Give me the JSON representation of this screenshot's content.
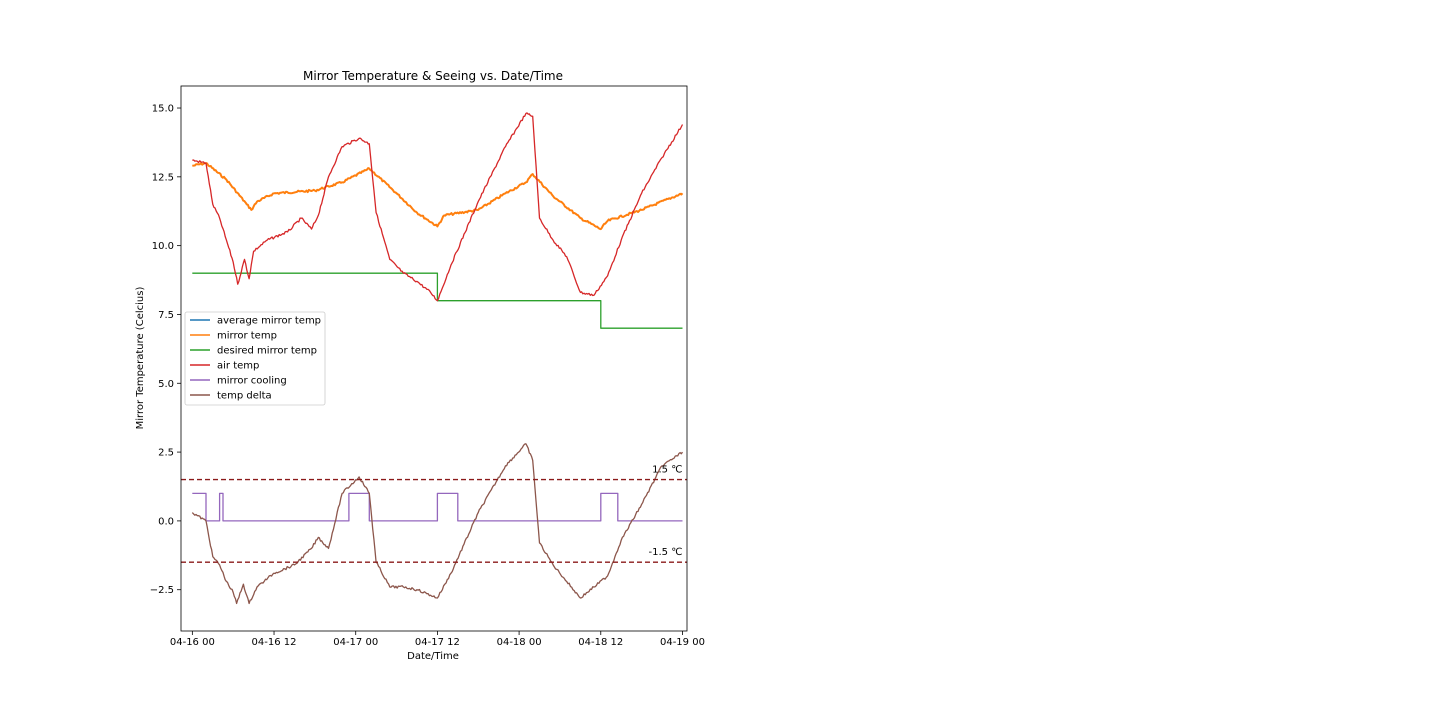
{
  "chart_data": {
    "type": "line",
    "title": "Mirror Temperature & Seeing vs. Date/Time",
    "xlabel": "Date/Time",
    "ylabel": "Mirror Temperature (Celcius)",
    "xlim": [
      "2024-04-15T22:20",
      "2024-04-19T00:40"
    ],
    "ylim": [
      -4.0,
      15.8
    ],
    "x_ticks": [
      {
        "t": "2024-04-16T00:00",
        "label": "04-16 00"
      },
      {
        "t": "2024-04-16T12:00",
        "label": "04-16 12"
      },
      {
        "t": "2024-04-17T00:00",
        "label": "04-17 00"
      },
      {
        "t": "2024-04-17T12:00",
        "label": "04-17 12"
      },
      {
        "t": "2024-04-18T00:00",
        "label": "04-18 00"
      },
      {
        "t": "2024-04-18T12:00",
        "label": "04-18 12"
      },
      {
        "t": "2024-04-19T00:00",
        "label": "04-19 00"
      }
    ],
    "y_ticks": [
      {
        "v": -2.5,
        "label": "−2.5"
      },
      {
        "v": 0.0,
        "label": "0.0"
      },
      {
        "v": 2.5,
        "label": "2.5"
      },
      {
        "v": 5.0,
        "label": "5.0"
      },
      {
        "v": 7.5,
        "label": "7.5"
      },
      {
        "v": 10.0,
        "label": "10.0"
      },
      {
        "v": 12.5,
        "label": "12.5"
      },
      {
        "v": 15.0,
        "label": "15.0"
      }
    ],
    "legend_position": "center-left",
    "grid": false,
    "series": [
      {
        "name": "average mirror temp",
        "color": "#1f77b4",
        "points": []
      },
      {
        "name": "mirror temp",
        "color": "#ff7f0e",
        "points": [
          [
            "2024-04-16T00:00",
            12.9
          ],
          [
            "2024-04-16T02:00",
            13.0
          ],
          [
            "2024-04-16T05:00",
            12.4
          ],
          [
            "2024-04-16T08:00",
            11.5
          ],
          [
            "2024-04-16T08:40",
            11.3
          ],
          [
            "2024-04-16T09:30",
            11.6
          ],
          [
            "2024-04-16T12:00",
            11.9
          ],
          [
            "2024-04-16T18:00",
            12.0
          ],
          [
            "2024-04-16T22:00",
            12.3
          ],
          [
            "2024-04-17T02:00",
            12.8
          ],
          [
            "2024-04-17T06:00",
            11.9
          ],
          [
            "2024-04-17T09:00",
            11.2
          ],
          [
            "2024-04-17T12:00",
            10.7
          ],
          [
            "2024-04-17T13:00",
            11.1
          ],
          [
            "2024-04-17T18:00",
            11.3
          ],
          [
            "2024-04-17T22:00",
            11.9
          ],
          [
            "2024-04-18T01:00",
            12.3
          ],
          [
            "2024-04-18T02:00",
            12.6
          ],
          [
            "2024-04-18T05:00",
            11.8
          ],
          [
            "2024-04-18T09:00",
            11.0
          ],
          [
            "2024-04-18T12:00",
            10.6
          ],
          [
            "2024-04-18T13:00",
            10.9
          ],
          [
            "2024-04-18T18:00",
            11.3
          ],
          [
            "2024-04-19T00:00",
            11.9
          ]
        ]
      },
      {
        "name": "desired mirror temp",
        "color": "#2ca02c",
        "points": [
          [
            "2024-04-16T00:00",
            9.0
          ],
          [
            "2024-04-17T12:00",
            9.0
          ],
          [
            "2024-04-17T12:00",
            8.0
          ],
          [
            "2024-04-18T12:00",
            8.0
          ],
          [
            "2024-04-18T12:00",
            7.0
          ],
          [
            "2024-04-19T00:00",
            7.0
          ]
        ]
      },
      {
        "name": "air temp",
        "color": "#d62728",
        "points": [
          [
            "2024-04-16T00:00",
            13.1
          ],
          [
            "2024-04-16T02:00",
            13.0
          ],
          [
            "2024-04-16T03:00",
            11.5
          ],
          [
            "2024-04-16T04:00",
            11.0
          ],
          [
            "2024-04-16T05:00",
            10.2
          ],
          [
            "2024-04-16T06:00",
            9.4
          ],
          [
            "2024-04-16T06:40",
            8.6
          ],
          [
            "2024-04-16T07:40",
            9.5
          ],
          [
            "2024-04-16T08:20",
            8.8
          ],
          [
            "2024-04-16T09:00",
            9.8
          ],
          [
            "2024-04-16T11:00",
            10.2
          ],
          [
            "2024-04-16T14:00",
            10.5
          ],
          [
            "2024-04-16T16:00",
            11.0
          ],
          [
            "2024-04-16T17:30",
            10.6
          ],
          [
            "2024-04-16T18:30",
            11.1
          ],
          [
            "2024-04-16T20:00",
            12.5
          ],
          [
            "2024-04-16T22:00",
            13.6
          ],
          [
            "2024-04-17T00:30",
            13.9
          ],
          [
            "2024-04-17T02:00",
            13.7
          ],
          [
            "2024-04-17T03:00",
            11.2
          ],
          [
            "2024-04-17T05:00",
            9.5
          ],
          [
            "2024-04-17T07:00",
            9.0
          ],
          [
            "2024-04-17T09:00",
            8.7
          ],
          [
            "2024-04-17T11:00",
            8.3
          ],
          [
            "2024-04-17T12:00",
            8.0
          ],
          [
            "2024-04-17T14:00",
            9.3
          ],
          [
            "2024-04-17T18:00",
            11.6
          ],
          [
            "2024-04-17T22:00",
            13.6
          ],
          [
            "2024-04-18T01:00",
            14.8
          ],
          [
            "2024-04-18T02:00",
            14.7
          ],
          [
            "2024-04-18T03:00",
            11.0
          ],
          [
            "2024-04-18T05:00",
            10.2
          ],
          [
            "2024-04-18T07:00",
            9.6
          ],
          [
            "2024-04-18T09:00",
            8.3
          ],
          [
            "2024-04-18T11:00",
            8.2
          ],
          [
            "2024-04-18T13:00",
            8.9
          ],
          [
            "2024-04-18T15:00",
            10.2
          ],
          [
            "2024-04-18T18:00",
            11.9
          ],
          [
            "2024-04-18T21:00",
            13.2
          ],
          [
            "2024-04-19T00:00",
            14.4
          ]
        ]
      },
      {
        "name": "mirror cooling",
        "color": "#9467bd",
        "points": [
          [
            "2024-04-16T00:00",
            1.0
          ],
          [
            "2024-04-16T02:00",
            1.0
          ],
          [
            "2024-04-16T02:00",
            0.0
          ],
          [
            "2024-04-16T04:00",
            0.0
          ],
          [
            "2024-04-16T04:00",
            1.0
          ],
          [
            "2024-04-16T04:30",
            1.0
          ],
          [
            "2024-04-16T04:30",
            0.0
          ],
          [
            "2024-04-16T23:00",
            0.0
          ],
          [
            "2024-04-16T23:00",
            1.0
          ],
          [
            "2024-04-17T02:00",
            1.0
          ],
          [
            "2024-04-17T02:00",
            0.0
          ],
          [
            "2024-04-17T12:00",
            0.0
          ],
          [
            "2024-04-17T12:00",
            1.0
          ],
          [
            "2024-04-17T15:00",
            1.0
          ],
          [
            "2024-04-17T15:00",
            0.0
          ],
          [
            "2024-04-18T12:00",
            0.0
          ],
          [
            "2024-04-18T12:00",
            1.0
          ],
          [
            "2024-04-18T14:30",
            1.0
          ],
          [
            "2024-04-18T14:30",
            0.0
          ],
          [
            "2024-04-19T00:00",
            0.0
          ]
        ]
      },
      {
        "name": "temp delta",
        "color": "#8c564b",
        "points": [
          [
            "2024-04-16T00:00",
            0.3
          ],
          [
            "2024-04-16T02:00",
            0.0
          ],
          [
            "2024-04-16T03:00",
            -1.3
          ],
          [
            "2024-04-16T04:00",
            -1.6
          ],
          [
            "2024-04-16T05:00",
            -2.2
          ],
          [
            "2024-04-16T06:00",
            -2.6
          ],
          [
            "2024-04-16T06:30",
            -3.0
          ],
          [
            "2024-04-16T07:30",
            -2.3
          ],
          [
            "2024-04-16T08:20",
            -3.0
          ],
          [
            "2024-04-16T09:30",
            -2.4
          ],
          [
            "2024-04-16T12:00",
            -1.9
          ],
          [
            "2024-04-16T15:00",
            -1.6
          ],
          [
            "2024-04-16T17:30",
            -1.0
          ],
          [
            "2024-04-16T18:30",
            -0.6
          ],
          [
            "2024-04-16T20:00",
            -1.0
          ],
          [
            "2024-04-16T22:00",
            1.0
          ],
          [
            "2024-04-17T00:30",
            1.6
          ],
          [
            "2024-04-17T02:00",
            1.0
          ],
          [
            "2024-04-17T03:00",
            -1.5
          ],
          [
            "2024-04-17T05:00",
            -2.4
          ],
          [
            "2024-04-17T07:00",
            -2.4
          ],
          [
            "2024-04-17T09:00",
            -2.5
          ],
          [
            "2024-04-17T11:00",
            -2.7
          ],
          [
            "2024-04-17T12:00",
            -2.8
          ],
          [
            "2024-04-17T14:00",
            -1.9
          ],
          [
            "2024-04-17T18:00",
            0.3
          ],
          [
            "2024-04-17T22:00",
            2.0
          ],
          [
            "2024-04-18T01:00",
            2.8
          ],
          [
            "2024-04-18T02:00",
            2.2
          ],
          [
            "2024-04-18T03:00",
            -0.8
          ],
          [
            "2024-04-18T05:00",
            -1.6
          ],
          [
            "2024-04-18T07:00",
            -2.2
          ],
          [
            "2024-04-18T09:00",
            -2.8
          ],
          [
            "2024-04-18T11:00",
            -2.4
          ],
          [
            "2024-04-18T13:00",
            -2.0
          ],
          [
            "2024-04-18T15:00",
            -0.7
          ],
          [
            "2024-04-18T18:00",
            0.6
          ],
          [
            "2024-04-18T21:00",
            2.0
          ],
          [
            "2024-04-19T00:00",
            2.5
          ]
        ]
      }
    ],
    "reference_lines": [
      {
        "value": 1.5,
        "label": "1.5 ℃",
        "color": "#8b1a1a",
        "style": "dashed"
      },
      {
        "value": -1.5,
        "label": "-1.5 ℃",
        "color": "#8b1a1a",
        "style": "dashed"
      }
    ]
  }
}
